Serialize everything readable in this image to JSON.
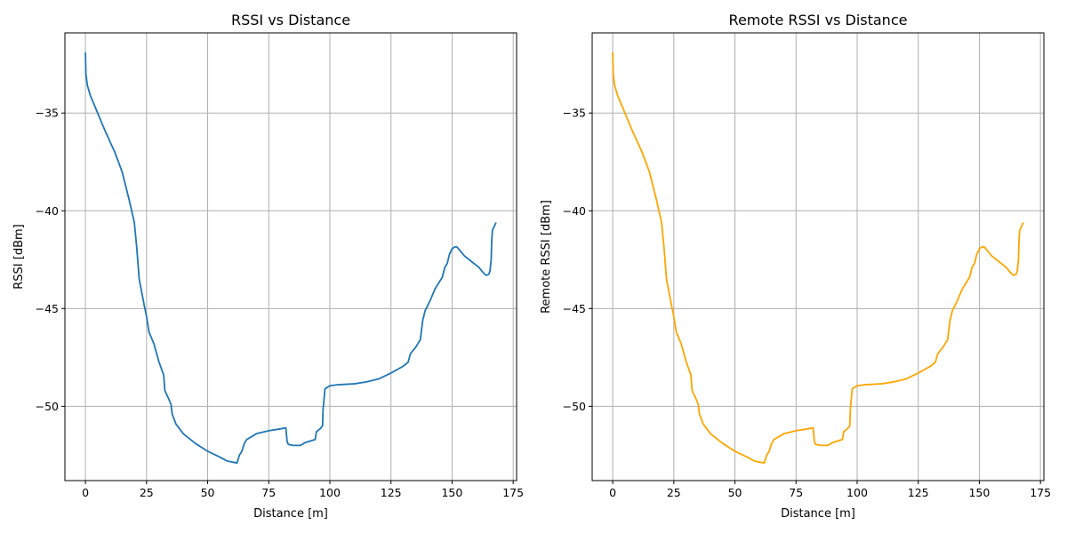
{
  "chart_data": [
    {
      "type": "line",
      "title": "RSSI vs Distance",
      "xlabel": "Distance [m]",
      "ylabel": "RSSI [dBm]",
      "xlim": [
        -8.4,
        176.4
      ],
      "ylim": [
        -53.8,
        -30.9
      ],
      "xticks": [
        0,
        25,
        50,
        75,
        100,
        125,
        150,
        175
      ],
      "yticks": [
        -50,
        -45,
        -40,
        -35
      ],
      "xtick_labels": [
        "0",
        "25",
        "50",
        "75",
        "100",
        "125",
        "150",
        "175"
      ],
      "ytick_labels": [
        "−50",
        "−45",
        "−40",
        "−35"
      ],
      "grid": true,
      "color": "#1f77b4",
      "series": [
        {
          "x": [
            0,
            0.2,
            0.8,
            2,
            5,
            8,
            12,
            15,
            18,
            20,
            21,
            22,
            24,
            25,
            26,
            28,
            30,
            32,
            32.5,
            34,
            35,
            35.5,
            37,
            40,
            45,
            50,
            55,
            58,
            62,
            63,
            64,
            65,
            66,
            70,
            75,
            80,
            82,
            82.5,
            83,
            85,
            88,
            90,
            94,
            94.5,
            96,
            97,
            97.2,
            98,
            100,
            103,
            110,
            115,
            120,
            125,
            130,
            132,
            133,
            135,
            136,
            137,
            138,
            139,
            141,
            143,
            146,
            147,
            148,
            149,
            150,
            151,
            152,
            153,
            155,
            158,
            161,
            163,
            164,
            165,
            165.5,
            166,
            166.2,
            166.5,
            168
          ],
          "y": [
            -31.9,
            -33.0,
            -33.6,
            -34.1,
            -35.0,
            -35.9,
            -37.0,
            -38.0,
            -39.5,
            -40.6,
            -41.9,
            -43.5,
            -44.8,
            -45.4,
            -46.2,
            -46.8,
            -47.7,
            -48.4,
            -49.2,
            -49.6,
            -49.9,
            -50.4,
            -50.9,
            -51.4,
            -51.9,
            -52.3,
            -52.6,
            -52.8,
            -52.9,
            -52.5,
            -52.3,
            -51.9,
            -51.7,
            -51.4,
            -51.25,
            -51.15,
            -51.1,
            -51.8,
            -51.95,
            -52.0,
            -52.0,
            -51.85,
            -51.7,
            -51.3,
            -51.15,
            -51.0,
            -50.2,
            -49.1,
            -48.95,
            -48.9,
            -48.85,
            -48.75,
            -48.6,
            -48.3,
            -47.95,
            -47.75,
            -47.3,
            -47.0,
            -46.8,
            -46.6,
            -45.6,
            -45.1,
            -44.6,
            -44.0,
            -43.4,
            -42.9,
            -42.7,
            -42.2,
            -41.95,
            -41.85,
            -41.85,
            -42.0,
            -42.3,
            -42.6,
            -42.9,
            -43.2,
            -43.3,
            -43.25,
            -43.1,
            -42.5,
            -41.6,
            -41.0,
            -40.6
          ]
        }
      ]
    },
    {
      "type": "line",
      "title": "Remote RSSI vs Distance",
      "xlabel": "Distance [m]",
      "ylabel": "Remote RSSI [dBm]",
      "xlim": [
        -8.4,
        176.4
      ],
      "ylim": [
        -53.8,
        -30.9
      ],
      "xticks": [
        0,
        25,
        50,
        75,
        100,
        125,
        150,
        175
      ],
      "yticks": [
        -50,
        -45,
        -40,
        -35
      ],
      "xtick_labels": [
        "0",
        "25",
        "50",
        "75",
        "100",
        "125",
        "150",
        "175"
      ],
      "ytick_labels": [
        "−50",
        "−45",
        "−40",
        "−35"
      ],
      "grid": true,
      "color": "#ffa500",
      "series": [
        {
          "x": [
            0,
            0.2,
            0.8,
            2,
            5,
            8,
            12,
            15,
            18,
            20,
            21,
            22,
            24,
            25,
            26,
            28,
            30,
            32,
            32.5,
            34,
            35,
            35.5,
            37,
            40,
            45,
            50,
            55,
            58,
            62,
            63,
            64,
            65,
            66,
            70,
            75,
            80,
            82,
            82.5,
            83,
            85,
            88,
            90,
            94,
            94.5,
            96,
            97,
            97.2,
            98,
            100,
            103,
            110,
            115,
            120,
            125,
            130,
            132,
            133,
            135,
            136,
            137,
            138,
            139,
            141,
            143,
            146,
            147,
            148,
            149,
            150,
            151,
            152,
            153,
            155,
            158,
            161,
            163,
            164,
            165,
            165.5,
            166,
            166.2,
            166.5,
            168
          ],
          "y": [
            -31.9,
            -33.0,
            -33.6,
            -34.1,
            -35.0,
            -35.9,
            -37.0,
            -38.0,
            -39.5,
            -40.6,
            -41.9,
            -43.5,
            -44.8,
            -45.4,
            -46.2,
            -46.8,
            -47.7,
            -48.4,
            -49.2,
            -49.6,
            -49.9,
            -50.4,
            -50.9,
            -51.4,
            -51.9,
            -52.3,
            -52.6,
            -52.8,
            -52.9,
            -52.5,
            -52.3,
            -51.9,
            -51.7,
            -51.4,
            -51.25,
            -51.15,
            -51.1,
            -51.8,
            -51.95,
            -52.0,
            -52.0,
            -51.85,
            -51.7,
            -51.3,
            -51.15,
            -51.0,
            -50.2,
            -49.1,
            -48.95,
            -48.9,
            -48.85,
            -48.75,
            -48.6,
            -48.3,
            -47.95,
            -47.75,
            -47.3,
            -47.0,
            -46.8,
            -46.6,
            -45.6,
            -45.1,
            -44.6,
            -44.0,
            -43.4,
            -42.9,
            -42.7,
            -42.2,
            -41.95,
            -41.85,
            -41.85,
            -42.0,
            -42.3,
            -42.6,
            -42.9,
            -43.2,
            -43.3,
            -43.25,
            -43.1,
            -42.5,
            -41.6,
            -41.0,
            -40.6
          ]
        }
      ]
    }
  ]
}
